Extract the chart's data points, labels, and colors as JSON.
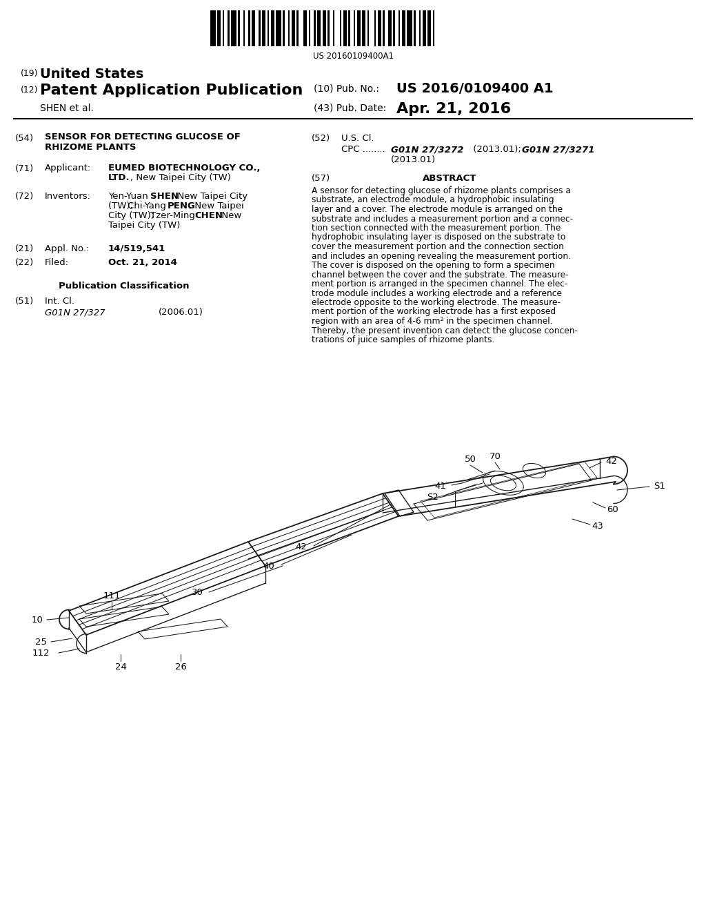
{
  "bg_color": "#ffffff",
  "barcode_text": "US 20160109400A1",
  "title_19": "(19) United States",
  "title_12": "(12) Patent Application Publication",
  "pub_no_label": "(10) Pub. No.:",
  "pub_no_value": "US 2016/0109400 A1",
  "inventor_label": "SHEN et al.",
  "pub_date_label": "(43) Pub. Date:",
  "pub_date_value": "Apr. 21, 2016",
  "line_col": "#1a1a1a",
  "field54_label": "(54)",
  "field54_title": "SENSOR FOR DETECTING GLUCOSE OF\nRHIZOME PLANTS",
  "field52_label": "(52)",
  "field52_title": "U.S. Cl.",
  "field71_label": "(71)",
  "field72_label": "(72)",
  "field21_label": "(21)",
  "field21_appl": "14/519,541",
  "field22_label": "(22)",
  "field22_date": "Oct. 21, 2014",
  "pubclass_title": "Publication Classification",
  "field51_label": "(51)",
  "abstract_label": "(57)",
  "abstract_title": "ABSTRACT",
  "abstract_text": "A sensor for detecting glucose of rhizome plants comprises a\nsubstrate, an electrode module, a hydrophobic insulating\nlayer and a cover. The electrode module is arranged on the\nsubstrate and includes a measurement portion and a connec-\ntion section connected with the measurement portion. The\nhydrophobic insulating layer is disposed on the substrate to\ncover the measurement portion and the connection section\nand includes an opening revealing the measurement portion.\nThe cover is disposed on the opening to form a specimen\nchannel between the cover and the substrate. The measure-\nment portion is arranged in the specimen channel. The elec-\ntrode module includes a working electrode and a reference\nelectrode opposite to the working electrode. The measure-\nment portion of the working electrode has a first exposed\nregion with an area of 4-6 mm² in the specimen channel.\nThereby, the present invention can detect the glucose concen-\ntrations of juice samples of rhizome plants."
}
